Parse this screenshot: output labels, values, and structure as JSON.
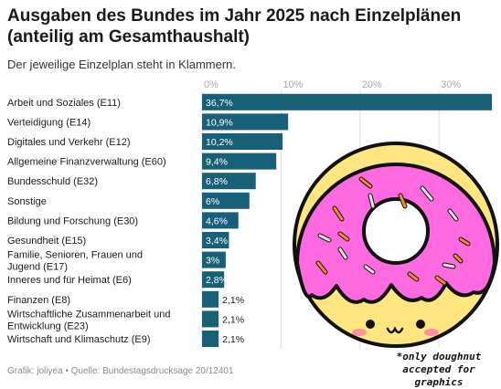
{
  "header": {
    "title": "Ausgaben des Bundes im Jahr 2025 nach Einzelplänen (anteilig am Gesamthaushalt)",
    "subtitle": "Der jeweilige Einzelplan steht in Klammern."
  },
  "footer": {
    "source": "Grafik: joliyea • Quelle: Bundestagsdrucksage 20/12401"
  },
  "annotation": {
    "line1": "*only doughnut",
    "line2": "accepted for graphics"
  },
  "colors": {
    "bar": "#185f78",
    "grid": "#dddddd",
    "tick": "#aaaaaa",
    "label": "#1a1a1a"
  },
  "doughnut": {
    "icon": "doughnut-icon",
    "icing": "#ff6ae0",
    "dough": "#ffe680",
    "outline": "#111111"
  },
  "chart_data": {
    "type": "bar",
    "orientation": "horizontal",
    "categories": [
      "Arbeit und Soziales (E11)",
      "Verteidigung (E14)",
      "Digitales und Verkehr (E12)",
      "Allgemeine Finanzverwaltung (E60)",
      "Bundesschuld (E32)",
      "Sonstige",
      "Bildung und Forschung (E30)",
      "Gesundheit (E15)",
      "Familie, Senioren, Frauen und Jugend (E17)",
      "Inneres und für Heimat (E6)",
      "Finanzen (E8)",
      "Wirtschaftliche Zusammenarbeit und Entwicklung (E23)",
      "Wirtschaft und Klimaschutz (E9)"
    ],
    "values": [
      36.7,
      10.9,
      10.2,
      9.4,
      6.8,
      6,
      4.6,
      3.4,
      3,
      2.8,
      2.1,
      2.1,
      2.1
    ],
    "value_labels": [
      "36,7%",
      "10,9%",
      "10,2%",
      "9,4%",
      "6,8%",
      "6%",
      "4,6%",
      "3,4%",
      "3%",
      "2,8%",
      "2,1%",
      "2,1%",
      "2,1%"
    ],
    "x_ticks": [
      0,
      10,
      20,
      30
    ],
    "x_tick_labels": [
      "0%",
      "10%",
      "20%",
      "30%"
    ],
    "xlim": [
      0,
      36.7
    ],
    "grid": true,
    "legend": "none"
  }
}
